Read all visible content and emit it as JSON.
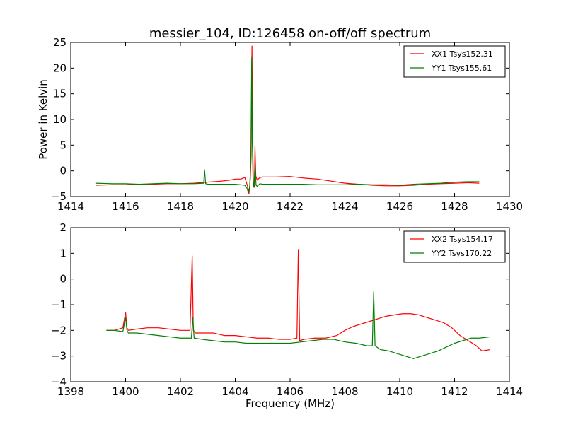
{
  "title": "messier_104, ID:126458 on-off/off spectrum",
  "colors": {
    "xx": "#ff0000",
    "yy": "#008000",
    "axis": "#000000",
    "background": "#ffffff"
  },
  "chart_data": [
    {
      "type": "line",
      "title": "messier_104, ID:126458 on-off/off spectrum",
      "xlabel": "",
      "ylabel": "Power in Kelvin",
      "xlim": [
        1414,
        1430
      ],
      "ylim": [
        -5,
        25
      ],
      "xticks": [
        "1414",
        "1416",
        "1418",
        "1420",
        "1422",
        "1424",
        "1426",
        "1428",
        "1430"
      ],
      "yticks": [
        "−5",
        "0",
        "5",
        "10",
        "15",
        "20",
        "25"
      ],
      "grid": false,
      "legend": "top-right",
      "series": [
        {
          "name": "XX1 Tsys152.31",
          "color": "#ff0000",
          "x": [
            1414.9,
            1415.5,
            1416.0,
            1416.5,
            1417.0,
            1417.5,
            1418.0,
            1418.5,
            1419.0,
            1419.5,
            1419.8,
            1420.0,
            1420.2,
            1420.35,
            1420.45,
            1420.5,
            1420.55,
            1420.58,
            1420.61,
            1420.63,
            1420.66,
            1420.7,
            1420.72,
            1420.75,
            1420.8,
            1420.9,
            1421.0,
            1421.5,
            1422.0,
            1422.5,
            1423.0,
            1423.5,
            1424.0,
            1424.5,
            1425.0,
            1425.5,
            1426.0,
            1426.5,
            1427.0,
            1427.5,
            1428.0,
            1428.5,
            1428.9
          ],
          "y": [
            -2.8,
            -2.7,
            -2.7,
            -2.6,
            -2.6,
            -2.5,
            -2.5,
            -2.4,
            -2.2,
            -2.0,
            -1.8,
            -1.6,
            -1.6,
            -1.3,
            -3.0,
            -4.5,
            -1.5,
            3.0,
            24.3,
            8.0,
            -2.5,
            -3.2,
            4.8,
            -1.0,
            -1.8,
            -1.3,
            -1.2,
            -1.2,
            -1.1,
            -1.4,
            -1.6,
            -2.0,
            -2.4,
            -2.6,
            -2.8,
            -2.9,
            -2.9,
            -2.8,
            -2.6,
            -2.5,
            -2.4,
            -2.3,
            -2.4
          ]
        },
        {
          "name": "YY1 Tsys155.61",
          "color": "#008000",
          "x": [
            1414.9,
            1415.5,
            1416.0,
            1416.5,
            1417.0,
            1417.5,
            1418.0,
            1418.5,
            1418.85,
            1418.88,
            1418.92,
            1419.0,
            1419.5,
            1420.0,
            1420.2,
            1420.35,
            1420.42,
            1420.48,
            1420.53,
            1420.57,
            1420.6,
            1420.62,
            1420.65,
            1420.68,
            1420.72,
            1420.76,
            1420.8,
            1420.9,
            1421.0,
            1421.5,
            1422.0,
            1422.5,
            1423.0,
            1423.5,
            1424.0,
            1424.5,
            1425.0,
            1425.5,
            1426.0,
            1426.5,
            1427.0,
            1427.5,
            1428.0,
            1428.5,
            1428.9
          ],
          "y": [
            -2.4,
            -2.5,
            -2.5,
            -2.6,
            -2.5,
            -2.4,
            -2.5,
            -2.5,
            -2.4,
            0.2,
            -2.5,
            -2.6,
            -2.6,
            -2.6,
            -2.7,
            -2.8,
            -3.3,
            -4.2,
            -3.0,
            3.0,
            22.2,
            6.0,
            -2.0,
            -3.2,
            1.0,
            -2.8,
            -3.0,
            -2.5,
            -2.6,
            -2.6,
            -2.6,
            -2.6,
            -2.7,
            -2.7,
            -2.7,
            -2.6,
            -2.7,
            -2.7,
            -2.8,
            -2.6,
            -2.5,
            -2.4,
            -2.2,
            -2.1,
            -2.1
          ]
        }
      ]
    },
    {
      "type": "line",
      "title": "",
      "xlabel": "Frequency (MHz)",
      "ylabel": "",
      "xlim": [
        1398,
        1414
      ],
      "ylim": [
        -4,
        2
      ],
      "xticks": [
        "1398",
        "1400",
        "1402",
        "1404",
        "1406",
        "1408",
        "1410",
        "1412",
        "1414"
      ],
      "yticks": [
        "−4",
        "−3",
        "−2",
        "−1",
        "0",
        "1",
        "2"
      ],
      "grid": false,
      "legend": "top-right",
      "series": [
        {
          "name": "XX2 Tsys154.17",
          "color": "#ff0000",
          "x": [
            1399.3,
            1399.6,
            1399.9,
            1400.0,
            1400.05,
            1400.1,
            1400.4,
            1400.8,
            1401.2,
            1401.6,
            1402.0,
            1402.35,
            1402.43,
            1402.47,
            1402.55,
            1402.8,
            1403.2,
            1403.6,
            1404.0,
            1404.4,
            1404.8,
            1405.2,
            1405.6,
            1406.0,
            1406.25,
            1406.3,
            1406.35,
            1406.5,
            1406.9,
            1407.3,
            1407.7,
            1408.0,
            1408.3,
            1408.6,
            1408.9,
            1409.2,
            1409.5,
            1409.8,
            1410.1,
            1410.4,
            1410.7,
            1411.0,
            1411.3,
            1411.6,
            1411.9,
            1412.2,
            1412.5,
            1412.8,
            1413.0,
            1413.3
          ],
          "y": [
            -2.0,
            -2.0,
            -1.9,
            -1.3,
            -1.9,
            -2.0,
            -1.95,
            -1.9,
            -1.9,
            -1.95,
            -2.0,
            -2.0,
            0.9,
            -2.0,
            -2.1,
            -2.1,
            -2.1,
            -2.2,
            -2.2,
            -2.25,
            -2.3,
            -2.3,
            -2.35,
            -2.35,
            -2.3,
            1.15,
            -2.4,
            -2.35,
            -2.3,
            -2.3,
            -2.2,
            -2.0,
            -1.85,
            -1.75,
            -1.65,
            -1.55,
            -1.45,
            -1.4,
            -1.35,
            -1.35,
            -1.4,
            -1.5,
            -1.6,
            -1.7,
            -1.9,
            -2.2,
            -2.4,
            -2.6,
            -2.8,
            -2.75
          ]
        },
        {
          "name": "YY2 Tsys170.22",
          "color": "#008000",
          "x": [
            1399.3,
            1399.6,
            1399.9,
            1400.0,
            1400.05,
            1400.1,
            1400.4,
            1400.8,
            1401.2,
            1401.6,
            1402.0,
            1402.4,
            1402.45,
            1402.5,
            1402.8,
            1403.2,
            1403.6,
            1404.0,
            1404.4,
            1404.8,
            1405.2,
            1405.6,
            1406.0,
            1406.4,
            1406.8,
            1407.2,
            1407.6,
            1408.0,
            1408.4,
            1408.8,
            1409.0,
            1409.05,
            1409.1,
            1409.3,
            1409.6,
            1409.9,
            1410.2,
            1410.5,
            1410.8,
            1411.1,
            1411.4,
            1411.7,
            1412.0,
            1412.3,
            1412.6,
            1412.9,
            1413.3
          ],
          "y": [
            -2.0,
            -2.0,
            -2.05,
            -1.5,
            -2.0,
            -2.1,
            -2.1,
            -2.15,
            -2.2,
            -2.25,
            -2.3,
            -2.3,
            -1.5,
            -2.3,
            -2.35,
            -2.4,
            -2.45,
            -2.45,
            -2.5,
            -2.5,
            -2.5,
            -2.5,
            -2.5,
            -2.45,
            -2.4,
            -2.35,
            -2.35,
            -2.45,
            -2.5,
            -2.6,
            -2.6,
            -0.5,
            -2.6,
            -2.75,
            -2.8,
            -2.9,
            -3.0,
            -3.1,
            -3.0,
            -2.9,
            -2.8,
            -2.65,
            -2.5,
            -2.4,
            -2.3,
            -2.3,
            -2.25
          ]
        }
      ]
    }
  ]
}
